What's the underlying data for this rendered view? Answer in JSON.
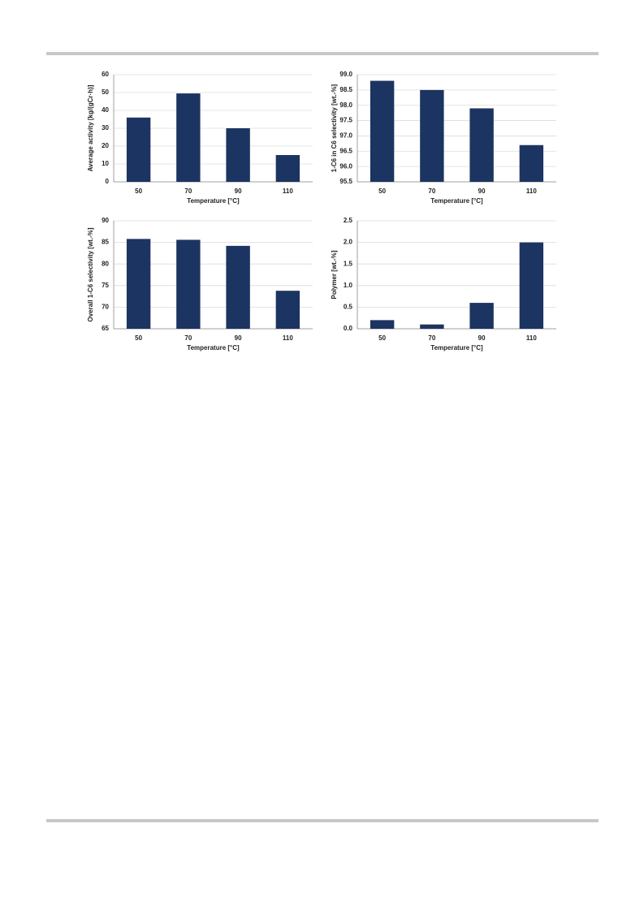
{
  "chart_data": [
    {
      "type": "bar",
      "y_label": "Average activity [kg/(gCr·h)]",
      "x_label": "Temperature [°C]",
      "categories": [
        "50",
        "70",
        "90",
        "110"
      ],
      "values": [
        36,
        49.5,
        30,
        15
      ],
      "color": "#1c3461",
      "ylim": [
        0,
        60
      ],
      "yticks": [
        0,
        10,
        20,
        30,
        40,
        50,
        60
      ],
      "grid": true
    },
    {
      "type": "bar",
      "y_label": "1-C6 in C6 selectivity [wt.-%]",
      "x_label": "Temperature [°C]",
      "categories": [
        "50",
        "70",
        "90",
        "110"
      ],
      "values": [
        98.8,
        98.5,
        97.9,
        96.7
      ],
      "color": "#1c3461",
      "ylim": [
        95.5,
        99
      ],
      "yticks": [
        95.5,
        {
          "value": 96,
          "label": "96.0"
        },
        96.5,
        {
          "value": 97,
          "label": "97.0"
        },
        97.5,
        {
          "value": 98,
          "label": "98.0"
        },
        98.5,
        {
          "value": 99,
          "label": "99.0"
        }
      ],
      "grid": true
    },
    {
      "type": "bar",
      "y_label": "Overall 1-C6 selectivity [wt.-%]",
      "x_label": "Temperature [°C]",
      "categories": [
        "50",
        "70",
        "90",
        "110"
      ],
      "values": [
        85.8,
        85.6,
        84.2,
        73.8
      ],
      "color": "#1c3461",
      "ylim": [
        65,
        90
      ],
      "yticks": [
        65,
        70,
        75,
        80,
        85,
        90
      ],
      "grid": true
    },
    {
      "type": "bar",
      "y_label": "Polymer  [wt.-%]",
      "x_label": "Temperature [°C]",
      "categories": [
        "50",
        "70",
        "90",
        "110"
      ],
      "values": [
        0.2,
        0.1,
        0.6,
        2.0
      ],
      "color": "#1c3461",
      "ylim": [
        0,
        2.5
      ],
      "yticks": [
        {
          "value": 0,
          "label": "0.0"
        },
        0.5,
        {
          "value": 1,
          "label": "1.0"
        },
        1.5,
        {
          "value": 2,
          "label": "2.0"
        },
        2.5
      ],
      "grid": true
    }
  ]
}
